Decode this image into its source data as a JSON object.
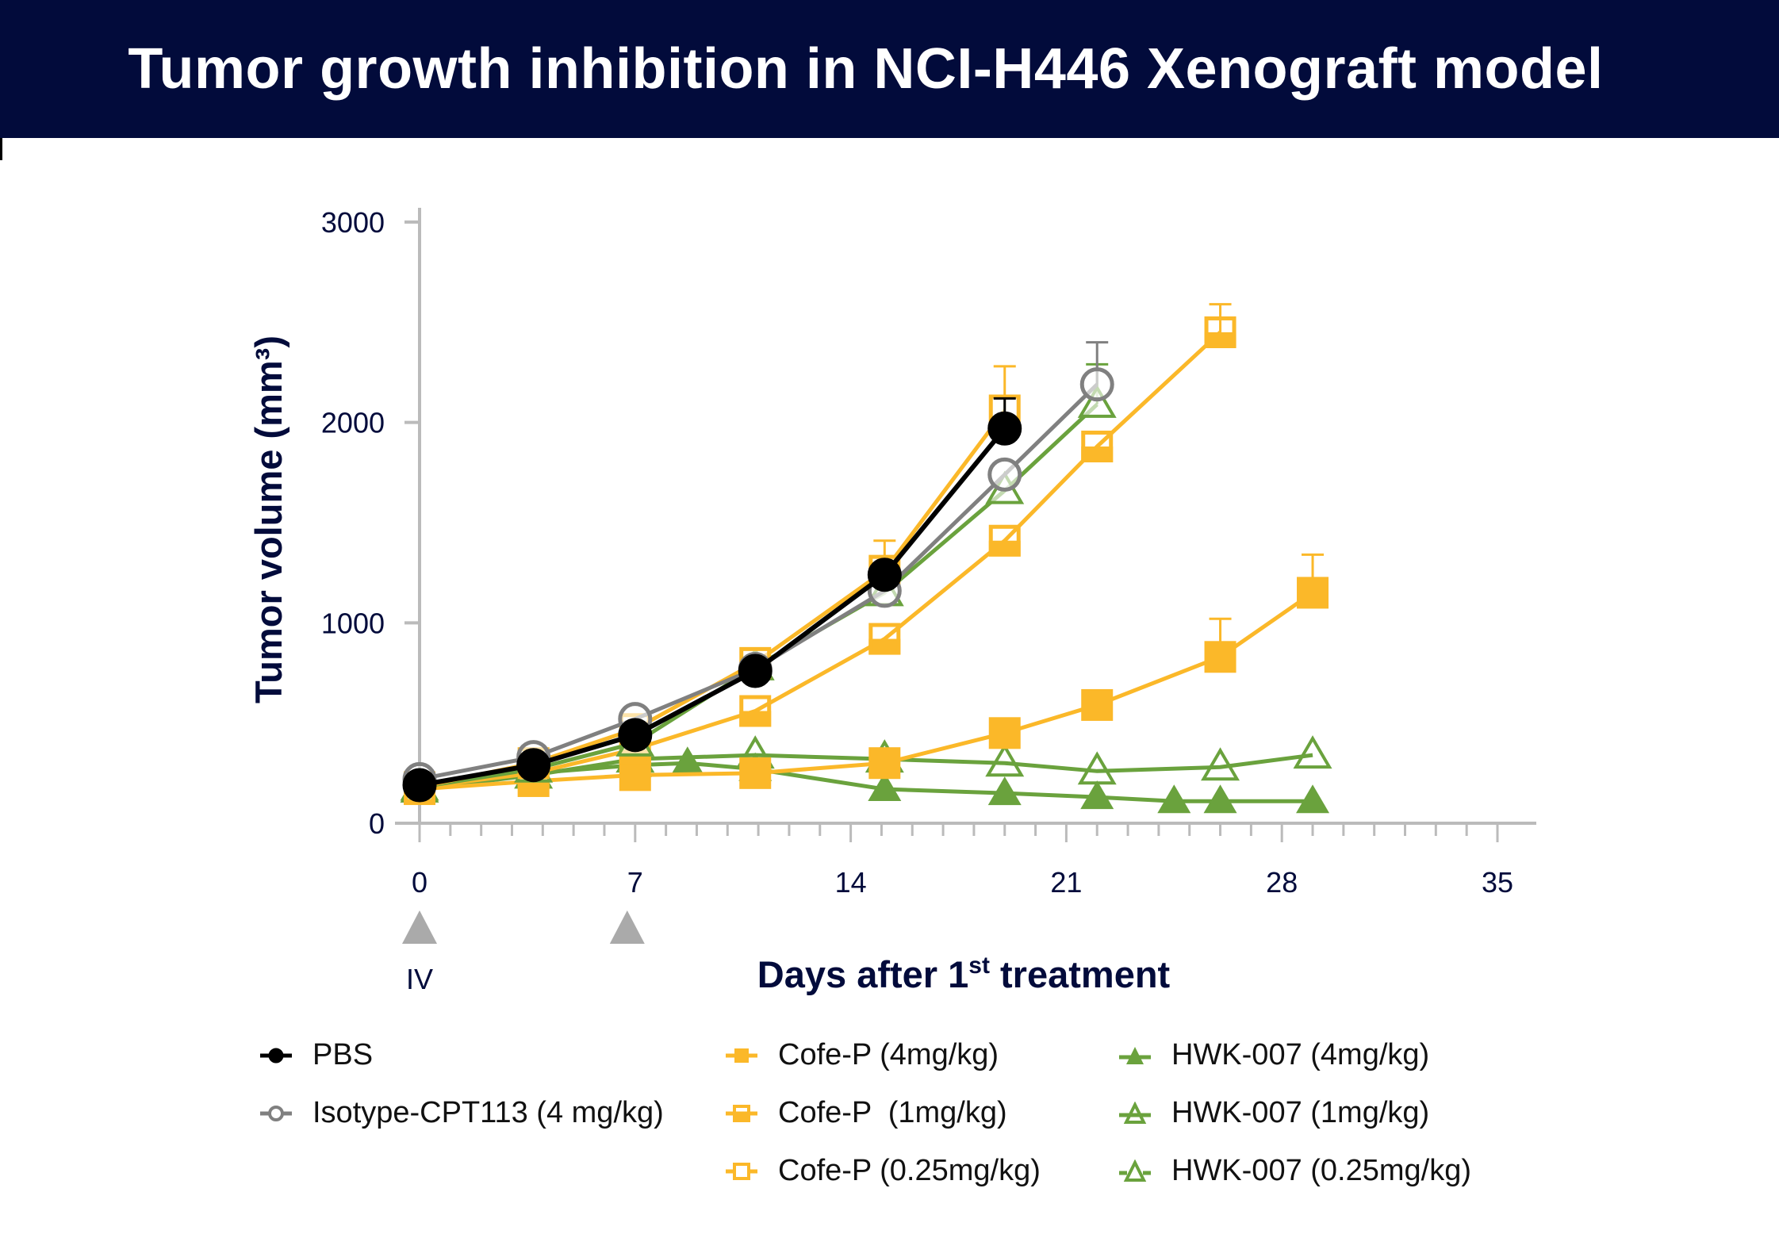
{
  "header": {
    "title": "Tumor growth inhibition in NCI-H446 Xenograft model"
  },
  "colors": {
    "header_bg": "#020b3b",
    "pbs": "#000000",
    "isotype": "#808080",
    "cofe": "#fbb829",
    "hwk": "#6aa23d",
    "axis": "#bbbbbb",
    "arrow": "#aaaaaa"
  },
  "chart_data": {
    "type": "line",
    "title": "Tumor growth inhibition in NCI-H446 Xenograft model",
    "xlabel": "Days after 1st treatment",
    "xlabel_main": "Days after 1",
    "xlabel_sup": "st",
    "xlabel_tail": " treatment",
    "ylabel": "Tumor volume (mm³)",
    "xlim": [
      0,
      35
    ],
    "ylim": [
      0,
      3000
    ],
    "x_ticks": [
      0,
      7,
      14,
      21,
      28,
      35
    ],
    "y_ticks": [
      0,
      1000,
      2000,
      3000
    ],
    "dosing_days": [
      0,
      7
    ],
    "dosing_label": "IV",
    "series": [
      {
        "name": "PBS",
        "color": "#000000",
        "marker": "circle",
        "fill": "filled",
        "x": [
          0,
          3.7,
          7,
          10.9,
          15.1,
          19
        ],
        "y": [
          190,
          290,
          440,
          760,
          1240,
          1970
        ],
        "err": [
          null,
          null,
          null,
          null,
          null,
          150
        ]
      },
      {
        "name": "Isotype-CPT113 (4 mg/kg)",
        "color": "#808080",
        "marker": "circle",
        "fill": "open",
        "x": [
          0,
          3.7,
          7,
          10.9,
          15.1,
          19,
          22
        ],
        "y": [
          220,
          330,
          520,
          770,
          1160,
          1740,
          2190
        ],
        "err": [
          null,
          null,
          null,
          null,
          null,
          null,
          210
        ]
      },
      {
        "name": "Cofe-P (4mg/kg)",
        "color": "#fbb829",
        "marker": "square",
        "fill": "filled",
        "x": [
          0,
          3.7,
          7,
          10.9,
          15.1,
          19,
          22,
          26,
          29
        ],
        "y": [
          170,
          210,
          240,
          250,
          300,
          450,
          590,
          830,
          1150
        ],
        "err": [
          null,
          null,
          null,
          null,
          null,
          null,
          null,
          190,
          190
        ]
      },
      {
        "name": "Cofe-P  (1mg/kg)",
        "color": "#fbb829",
        "marker": "square",
        "fill": "half",
        "x": [
          0,
          3.7,
          7,
          10.9,
          15.1,
          19,
          22,
          26
        ],
        "y": [
          180,
          250,
          370,
          560,
          920,
          1410,
          1880,
          2450
        ],
        "err": [
          null,
          null,
          null,
          null,
          null,
          null,
          null,
          140
        ]
      },
      {
        "name": "Cofe-P (0.25mg/kg)",
        "color": "#fbb829",
        "marker": "square",
        "fill": "open",
        "x": [
          0,
          3.7,
          7,
          10.9,
          15.1,
          19
        ],
        "y": [
          180,
          300,
          470,
          800,
          1260,
          2060
        ],
        "err": [
          null,
          null,
          null,
          null,
          150,
          220
        ]
      },
      {
        "name": "HWK-007 (4mg/kg)",
        "color": "#6aa23d",
        "marker": "triangle",
        "fill": "filled",
        "x": [
          0,
          3.7,
          7,
          8.7,
          10.9,
          15.1,
          19,
          22,
          24.5,
          26,
          29
        ],
        "y": [
          170,
          250,
          290,
          300,
          270,
          170,
          150,
          130,
          110,
          110,
          110
        ],
        "err": null
      },
      {
        "name": "HWK-007 (1mg/kg)",
        "color": "#6aa23d",
        "marker": "triangle",
        "fill": "half",
        "x": [
          0,
          3.7,
          7,
          10.9,
          15.1,
          19,
          22,
          26,
          29
        ],
        "y": [
          170,
          240,
          320,
          340,
          320,
          300,
          260,
          280,
          340
        ],
        "err": null
      },
      {
        "name": "HWK-007 (0.25mg/kg)",
        "color": "#6aa23d",
        "marker": "triangle",
        "fill": "open",
        "x": [
          0,
          3.7,
          7,
          10.9,
          15.1,
          19,
          22
        ],
        "y": [
          180,
          270,
          400,
          780,
          1150,
          1660,
          2090
        ],
        "err": [
          null,
          null,
          null,
          null,
          null,
          null,
          200
        ]
      }
    ],
    "legend": [
      "PBS",
      "Isotype-CPT113 (4 mg/kg)",
      "Cofe-P (4mg/kg)",
      "Cofe-P  (1mg/kg)",
      "Cofe-P (0.25mg/kg)",
      "HWK-007 (4mg/kg)",
      "HWK-007 (1mg/kg)",
      "HWK-007 (0.25mg/kg)"
    ]
  }
}
